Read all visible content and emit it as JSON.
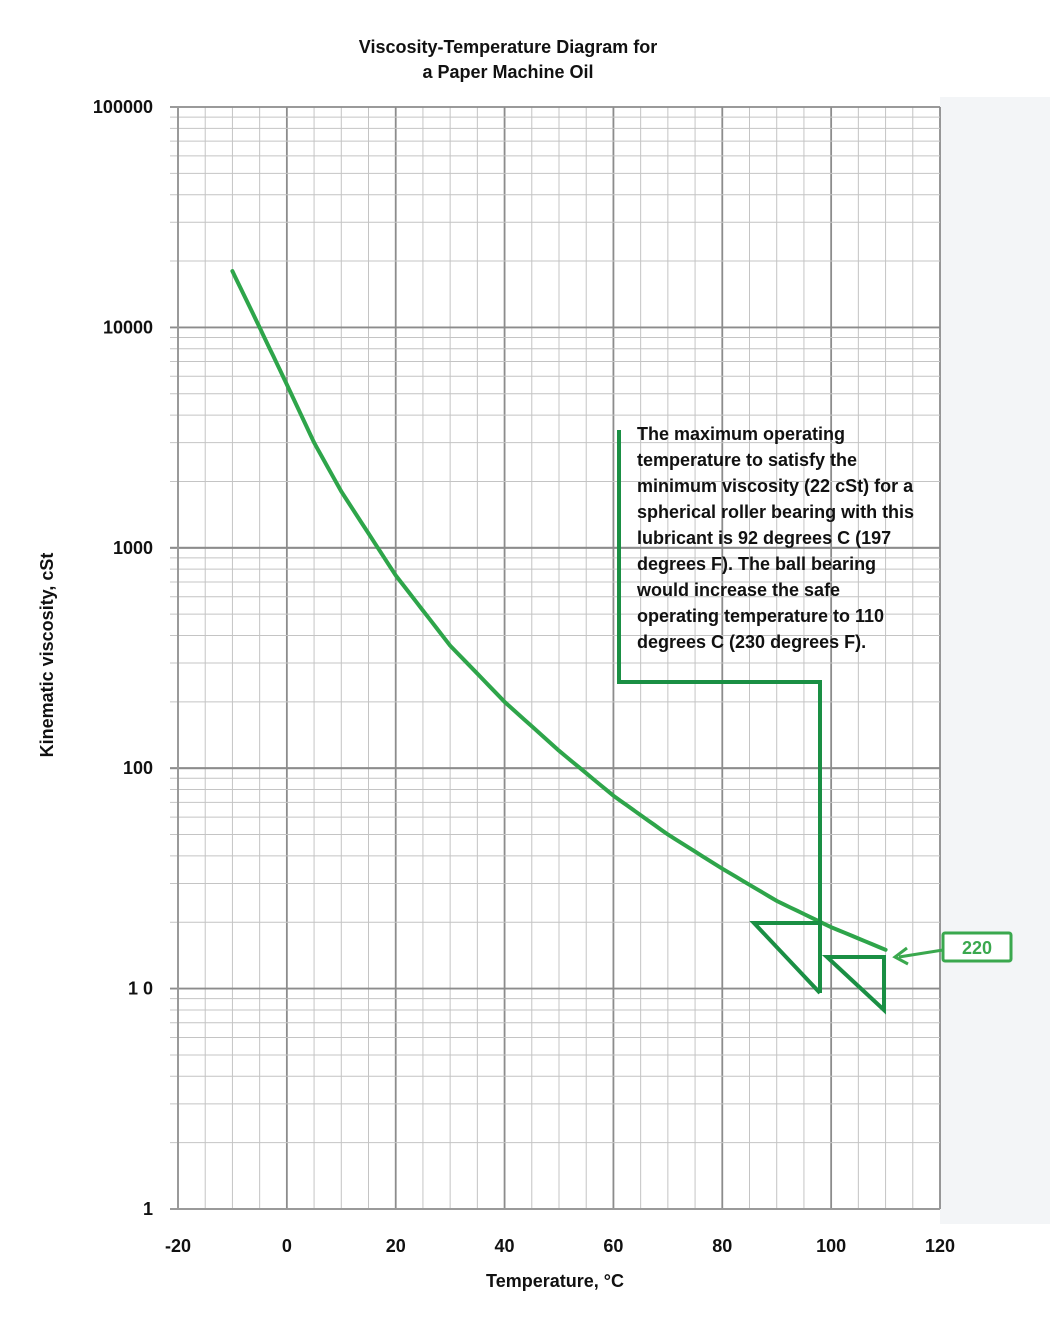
{
  "chart_data": {
    "type": "line",
    "title": [
      "Viscosity-Temperature Diagram for",
      "a Paper Machine Oil"
    ],
    "xlabel": "Temperature, °C",
    "ylabel": "Kinematic viscosity, cSt",
    "xlim": [
      -20,
      120
    ],
    "ylim": [
      1,
      100000
    ],
    "yscale": "log",
    "xticks": [
      -20,
      0,
      20,
      40,
      60,
      80,
      100,
      120
    ],
    "xtick_labels": [
      "-20",
      "0",
      "20",
      "40",
      "60",
      "80",
      "100",
      "120"
    ],
    "yticks": [
      1,
      10,
      100,
      1000,
      10000,
      100000
    ],
    "ytick_labels": [
      "1",
      "1 0",
      "100",
      "1000",
      "10000",
      "100000"
    ],
    "grid": true,
    "series": [
      {
        "name": "220",
        "color": "#2ea54a",
        "x": [
          -10,
          -5,
          0,
          5,
          10,
          20,
          30,
          40,
          50,
          60,
          70,
          80,
          90,
          100,
          110
        ],
        "y": [
          18000,
          10000,
          5500,
          3000,
          1800,
          750,
          360,
          200,
          120,
          75,
          50,
          35,
          25,
          19,
          15
        ]
      }
    ],
    "annotations": {
      "text": [
        "The maximum operating",
        "temperature to satisfy the",
        "minimum viscosity (22 cSt) for a",
        "spherical roller bearing with this",
        "lubricant is 92 degrees C (197",
        "degrees F). The ball bearing",
        "would increase the safe",
        "operating temperature to 110",
        "degrees C (230 degrees F)."
      ],
      "series_tag": "220",
      "guide_color": "#1a8f44",
      "tag_color": "#3aa84e"
    }
  }
}
